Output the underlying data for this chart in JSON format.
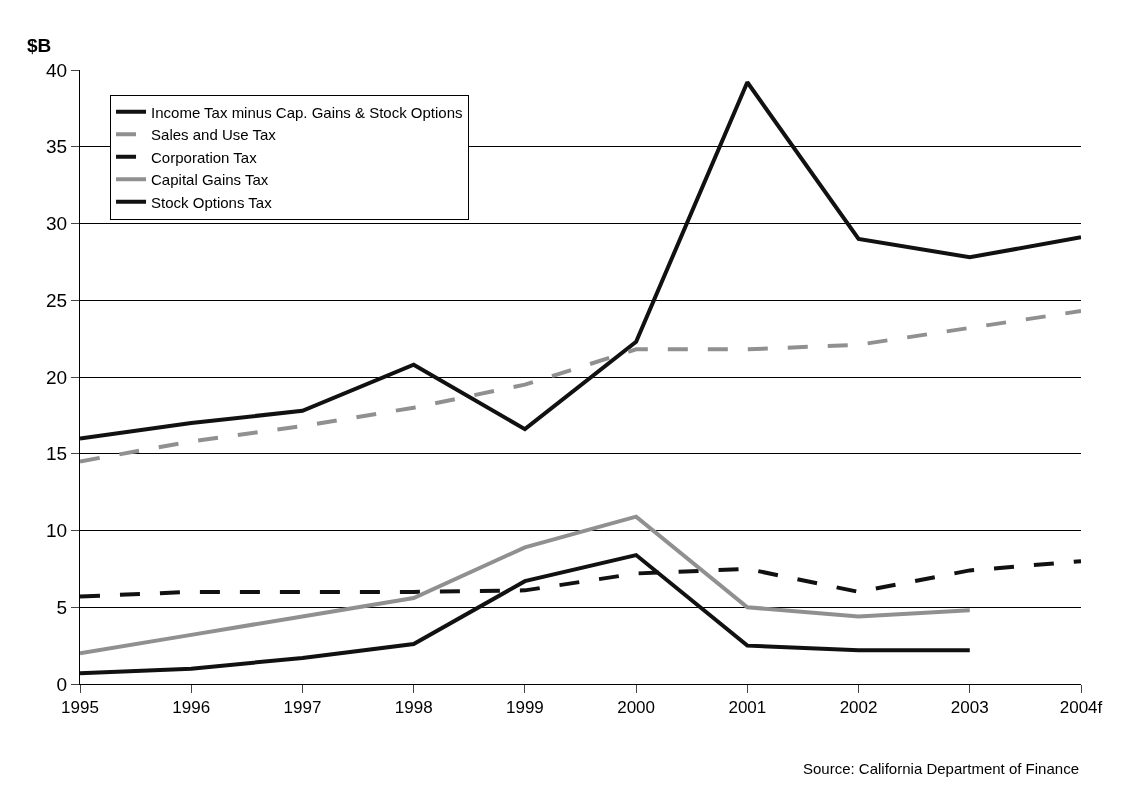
{
  "chart_data": {
    "type": "line",
    "ylabel": "$B",
    "categories": [
      "1995",
      "1996",
      "1997",
      "1998",
      "1999",
      "2000",
      "2001",
      "2002",
      "2003",
      "2004f"
    ],
    "series": [
      {
        "name": "Income Tax minus Cap. Gains & Stock Options",
        "color": "#111111",
        "line_style": "solid",
        "values": [
          16.0,
          17.0,
          17.8,
          20.8,
          16.6,
          22.3,
          39.2,
          29.0,
          27.8,
          29.1
        ]
      },
      {
        "name": "Sales and Use Tax",
        "color": "#909090",
        "line_style": "dashed",
        "values": [
          14.5,
          15.8,
          16.8,
          18.0,
          19.5,
          21.8,
          21.8,
          22.1,
          23.2,
          24.3
        ]
      },
      {
        "name": "Corporation Tax",
        "color": "#111111",
        "line_style": "dashed",
        "values": [
          5.7,
          6.0,
          6.0,
          6.0,
          6.1,
          7.2,
          7.5,
          6.0,
          7.4,
          8.0
        ]
      },
      {
        "name": "Capital Gains Tax",
        "color": "#909090",
        "line_style": "solid",
        "values": [
          2.0,
          3.2,
          4.4,
          5.6,
          8.9,
          10.9,
          5.0,
          4.4,
          4.8,
          null
        ]
      },
      {
        "name": "Stock Options Tax",
        "color": "#111111",
        "line_style": "solid",
        "values": [
          0.7,
          1.0,
          1.7,
          2.6,
          6.7,
          8.4,
          2.5,
          2.2,
          2.2,
          null
        ]
      }
    ],
    "ylim": [
      0,
      40
    ],
    "yticks": [
      0,
      5,
      10,
      15,
      20,
      25,
      30,
      35,
      40
    ],
    "grid": "y",
    "legend": "top left",
    "marker": "none",
    "annotations": [
      "Source: California Department of Finance"
    ]
  }
}
